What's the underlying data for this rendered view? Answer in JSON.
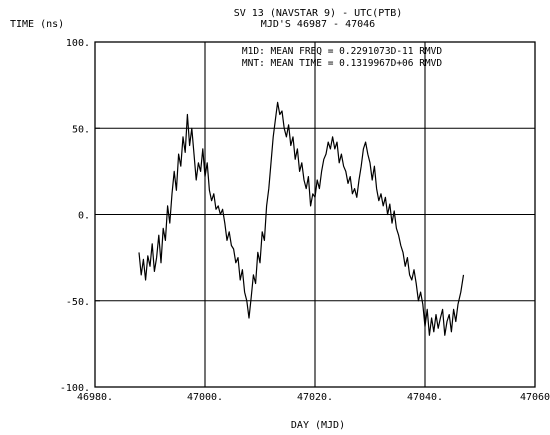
{
  "chart_data": {
    "type": "line",
    "title": "SV 13 (NAVSTAR 9)  -  UTC(PTB)",
    "subtitle": "MJD'S 46987 - 47046",
    "ylabel": "TIME (ns)",
    "xlabel": "DAY (MJD)",
    "annotations": [
      "M1D: MEAN FREQ = 0.2291073D-11 RMVD",
      "MNT: MEAN TIME = 0.1319967D+06 RMVD"
    ],
    "xlim": [
      46980,
      47060
    ],
    "ylim": [
      -100,
      100
    ],
    "x_ticks": [
      {
        "value": 46980,
        "label": "46980."
      },
      {
        "value": 47000,
        "label": "47000."
      },
      {
        "value": 47020,
        "label": "47020."
      },
      {
        "value": 47040,
        "label": "47040."
      },
      {
        "value": 47060,
        "label": "47060"
      }
    ],
    "y_ticks": [
      {
        "value": 100,
        "label": "100."
      },
      {
        "value": 50,
        "label": "50."
      },
      {
        "value": 0,
        "label": "0."
      },
      {
        "value": -50,
        "label": "-50."
      },
      {
        "value": -100,
        "label": "-100."
      }
    ],
    "grid": {
      "x": [
        47000,
        47020,
        47040
      ],
      "y": [
        50,
        0,
        -50
      ]
    },
    "series": [
      {
        "color": "#000000",
        "points": [
          [
            46988.0,
            -22
          ],
          [
            46988.4,
            -35
          ],
          [
            46988.8,
            -26
          ],
          [
            46989.2,
            -38
          ],
          [
            46989.6,
            -24
          ],
          [
            46990.0,
            -30
          ],
          [
            46990.4,
            -17
          ],
          [
            46990.8,
            -33
          ],
          [
            46991.2,
            -25
          ],
          [
            46991.6,
            -12
          ],
          [
            46992.0,
            -28
          ],
          [
            46992.4,
            -8
          ],
          [
            46992.8,
            -15
          ],
          [
            46993.2,
            5
          ],
          [
            46993.6,
            -5
          ],
          [
            46994.0,
            12
          ],
          [
            46994.4,
            25
          ],
          [
            46994.8,
            14
          ],
          [
            46995.2,
            35
          ],
          [
            46995.6,
            28
          ],
          [
            46996.0,
            45
          ],
          [
            46996.4,
            36
          ],
          [
            46996.8,
            58
          ],
          [
            46997.2,
            40
          ],
          [
            46997.6,
            50
          ],
          [
            46998.0,
            35
          ],
          [
            46998.4,
            20
          ],
          [
            46998.8,
            30
          ],
          [
            46999.2,
            25
          ],
          [
            46999.6,
            38
          ],
          [
            47000.0,
            22
          ],
          [
            47000.4,
            30
          ],
          [
            47000.8,
            14
          ],
          [
            47001.2,
            8
          ],
          [
            47001.6,
            12
          ],
          [
            47002.0,
            3
          ],
          [
            47002.4,
            5
          ],
          [
            47002.8,
            0
          ],
          [
            47003.2,
            3
          ],
          [
            47003.6,
            -5
          ],
          [
            47004.0,
            -15
          ],
          [
            47004.4,
            -10
          ],
          [
            47004.8,
            -18
          ],
          [
            47005.2,
            -20
          ],
          [
            47005.6,
            -28
          ],
          [
            47006.0,
            -25
          ],
          [
            47006.4,
            -38
          ],
          [
            47006.8,
            -32
          ],
          [
            47007.2,
            -45
          ],
          [
            47007.6,
            -50
          ],
          [
            47008.0,
            -60
          ],
          [
            47008.4,
            -48
          ],
          [
            47008.8,
            -35
          ],
          [
            47009.2,
            -40
          ],
          [
            47009.6,
            -22
          ],
          [
            47010.0,
            -28
          ],
          [
            47010.4,
            -10
          ],
          [
            47010.8,
            -15
          ],
          [
            47011.2,
            5
          ],
          [
            47011.6,
            15
          ],
          [
            47012.0,
            30
          ],
          [
            47012.4,
            45
          ],
          [
            47012.8,
            55
          ],
          [
            47013.2,
            65
          ],
          [
            47013.6,
            58
          ],
          [
            47014.0,
            60
          ],
          [
            47014.4,
            50
          ],
          [
            47014.8,
            45
          ],
          [
            47015.2,
            52
          ],
          [
            47015.6,
            40
          ],
          [
            47016.0,
            45
          ],
          [
            47016.4,
            32
          ],
          [
            47016.8,
            38
          ],
          [
            47017.2,
            25
          ],
          [
            47017.6,
            30
          ],
          [
            47018.0,
            20
          ],
          [
            47018.4,
            15
          ],
          [
            47018.8,
            22
          ],
          [
            47019.2,
            5
          ],
          [
            47019.6,
            12
          ],
          [
            47020.0,
            10
          ],
          [
            47020.4,
            20
          ],
          [
            47020.8,
            15
          ],
          [
            47021.2,
            25
          ],
          [
            47021.6,
            32
          ],
          [
            47022.0,
            35
          ],
          [
            47022.4,
            42
          ],
          [
            47022.8,
            38
          ],
          [
            47023.2,
            45
          ],
          [
            47023.6,
            38
          ],
          [
            47024.0,
            42
          ],
          [
            47024.4,
            30
          ],
          [
            47024.8,
            35
          ],
          [
            47025.2,
            28
          ],
          [
            47025.6,
            25
          ],
          [
            47026.0,
            18
          ],
          [
            47026.4,
            22
          ],
          [
            47026.8,
            12
          ],
          [
            47027.2,
            15
          ],
          [
            47027.6,
            10
          ],
          [
            47028.0,
            20
          ],
          [
            47028.4,
            28
          ],
          [
            47028.8,
            38
          ],
          [
            47029.2,
            42
          ],
          [
            47029.6,
            35
          ],
          [
            47030.0,
            30
          ],
          [
            47030.4,
            20
          ],
          [
            47030.8,
            28
          ],
          [
            47031.2,
            15
          ],
          [
            47031.6,
            8
          ],
          [
            47032.0,
            12
          ],
          [
            47032.4,
            5
          ],
          [
            47032.8,
            10
          ],
          [
            47033.2,
            0
          ],
          [
            47033.6,
            6
          ],
          [
            47034.0,
            -5
          ],
          [
            47034.4,
            2
          ],
          [
            47034.8,
            -8
          ],
          [
            47035.2,
            -12
          ],
          [
            47035.6,
            -18
          ],
          [
            47036.0,
            -22
          ],
          [
            47036.4,
            -30
          ],
          [
            47036.8,
            -25
          ],
          [
            47037.2,
            -35
          ],
          [
            47037.6,
            -38
          ],
          [
            47038.0,
            -32
          ],
          [
            47038.4,
            -40
          ],
          [
            47038.8,
            -50
          ],
          [
            47039.2,
            -45
          ],
          [
            47039.6,
            -52
          ],
          [
            47040.0,
            -65
          ],
          [
            47040.4,
            -55
          ],
          [
            47040.8,
            -70
          ],
          [
            47041.2,
            -60
          ],
          [
            47041.6,
            -68
          ],
          [
            47042.0,
            -58
          ],
          [
            47042.4,
            -66
          ],
          [
            47042.8,
            -60
          ],
          [
            47043.2,
            -55
          ],
          [
            47043.6,
            -70
          ],
          [
            47044.0,
            -62
          ],
          [
            47044.4,
            -58
          ],
          [
            47044.8,
            -68
          ],
          [
            47045.2,
            -55
          ],
          [
            47045.6,
            -62
          ],
          [
            47046.0,
            -52
          ],
          [
            47046.5,
            -45
          ],
          [
            47047.0,
            -35
          ]
        ]
      }
    ]
  }
}
